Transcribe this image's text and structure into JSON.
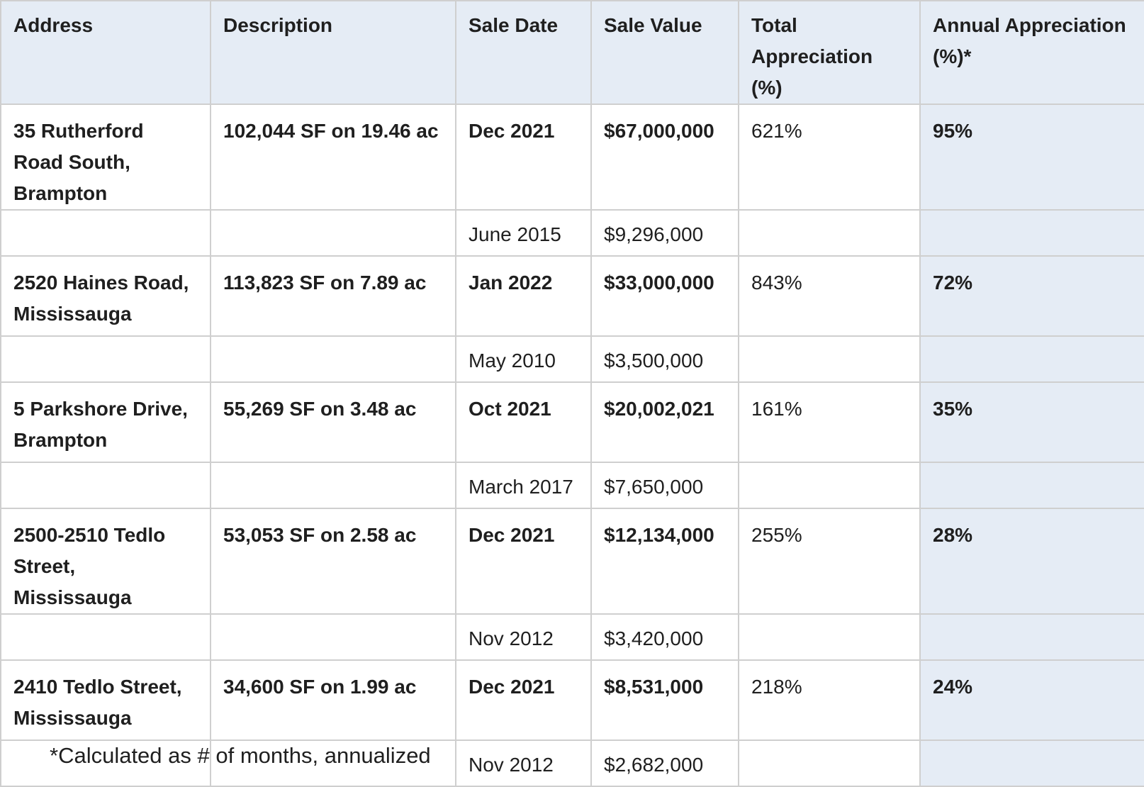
{
  "table": {
    "headers": [
      "Address",
      "Description",
      "Sale Date",
      "Sale Value",
      "Total Appreciation (%)",
      "Annual Appreciation (%)*"
    ],
    "properties": [
      {
        "address": "35 Rutherford Road South, Brampton",
        "description": "102,044 SF on 19.46 ac",
        "recent_sale_date": "Dec 2021",
        "recent_sale_value": "$67,000,000",
        "total_appreciation": "621%",
        "annual_appreciation": "95%",
        "prior_sale_date": "June 2015",
        "prior_sale_value": "$9,296,000"
      },
      {
        "address": "2520 Haines Road, Mississauga",
        "description": "113,823 SF on 7.89 ac",
        "recent_sale_date": "Jan 2022",
        "recent_sale_value": "$33,000,000",
        "total_appreciation": "843%",
        "annual_appreciation": "72%",
        "prior_sale_date": "May 2010",
        "prior_sale_value": "$3,500,000"
      },
      {
        "address": "5 Parkshore Drive, Brampton",
        "description": "55,269 SF on 3.48 ac",
        "recent_sale_date": "Oct 2021",
        "recent_sale_value": "$20,002,021",
        "total_appreciation": "161%",
        "annual_appreciation": "35%",
        "prior_sale_date": "March 2017",
        "prior_sale_value": "$7,650,000"
      },
      {
        "address": "2500-2510 Tedlo Street, Mississauga",
        "description": "53,053 SF on 2.58 ac",
        "recent_sale_date": "Dec 2021",
        "recent_sale_value": "$12,134,000",
        "total_appreciation": "255%",
        "annual_appreciation": "28%",
        "prior_sale_date": "Nov 2012",
        "prior_sale_value": "$3,420,000"
      },
      {
        "address": "2410 Tedlo Street, Mississauga",
        "description": "34,600 SF on 1.99 ac",
        "recent_sale_date": "Dec 2021",
        "recent_sale_value": "$8,531,000",
        "total_appreciation": "218%",
        "annual_appreciation": "24%",
        "prior_sale_date": "Nov 2012",
        "prior_sale_value": "$2,682,000"
      }
    ]
  },
  "footnote": "*Calculated as # of months, annualized",
  "colors": {
    "header_background": "#e5ecf5",
    "annual_column_background": "#e5ecf5",
    "grid_line": "#cfcfcf",
    "text": "#1f1f1f"
  }
}
